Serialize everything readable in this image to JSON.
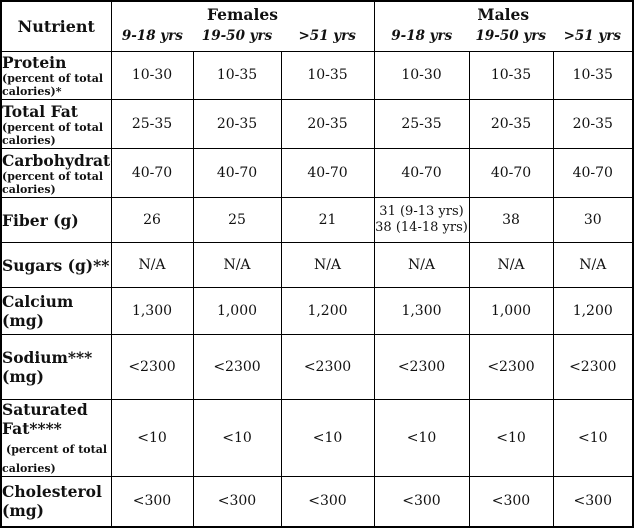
{
  "colors": {
    "border": "#000000",
    "text": "#111111",
    "background": "#ffffff"
  },
  "table": {
    "header": {
      "nutrient": "Nutrient",
      "groups": [
        {
          "label": "Females",
          "ages": [
            "9-18 yrs",
            "19-50 yrs",
            ">51 yrs"
          ]
        },
        {
          "label": "Males",
          "ages": [
            "9-18 yrs",
            "19-50 yrs",
            ">51 yrs"
          ]
        }
      ]
    },
    "rows": [
      {
        "nutrient": "Protein",
        "note": "(percent of total calories)*",
        "note_inline": false,
        "values": [
          "10-30",
          "10-35",
          "10-35",
          "10-30",
          "10-35",
          "10-35"
        ]
      },
      {
        "nutrient": "Total Fat",
        "note": "(percent of total calories)",
        "note_inline": false,
        "values": [
          "25-35",
          "20-35",
          "20-35",
          "25-35",
          "20-35",
          "20-35"
        ]
      },
      {
        "nutrient": "Carbohydrate",
        "note": "(percent of total calories)",
        "note_inline": false,
        "values": [
          "40-70",
          "40-70",
          "40-70",
          "40-70",
          "40-70",
          "40-70"
        ]
      },
      {
        "nutrient": "Fiber (g)",
        "note": "",
        "note_inline": false,
        "values": [
          "26",
          "25",
          "21",
          "31 (9-13 yrs)\n38 (14-18 yrs)",
          "38",
          "30"
        ]
      },
      {
        "nutrient": "Sugars (g)**",
        "note": "",
        "note_inline": false,
        "values": [
          "N/A",
          "N/A",
          "N/A",
          "N/A",
          "N/A",
          "N/A"
        ]
      },
      {
        "nutrient": "Calcium (mg)",
        "note": "",
        "note_inline": false,
        "values": [
          "1,300",
          "1,000",
          "1,200",
          "1,300",
          "1,000",
          "1,200"
        ]
      },
      {
        "nutrient": "Sodium*** (mg)",
        "note": "",
        "note_inline": false,
        "values": [
          "<2300",
          "<2300",
          "<2300",
          "<2300",
          "<2300",
          "<2300"
        ]
      },
      {
        "nutrient": "Saturated Fat****",
        "note": "(percent of total calories)",
        "note_inline": true,
        "values": [
          "<10",
          "<10",
          "<10",
          "<10",
          "<10",
          "<10"
        ]
      },
      {
        "nutrient": "Cholesterol (mg)",
        "note": "",
        "note_inline": false,
        "values": [
          "<300",
          "<300",
          "<300",
          "<300",
          "<300",
          "<300"
        ]
      }
    ]
  }
}
